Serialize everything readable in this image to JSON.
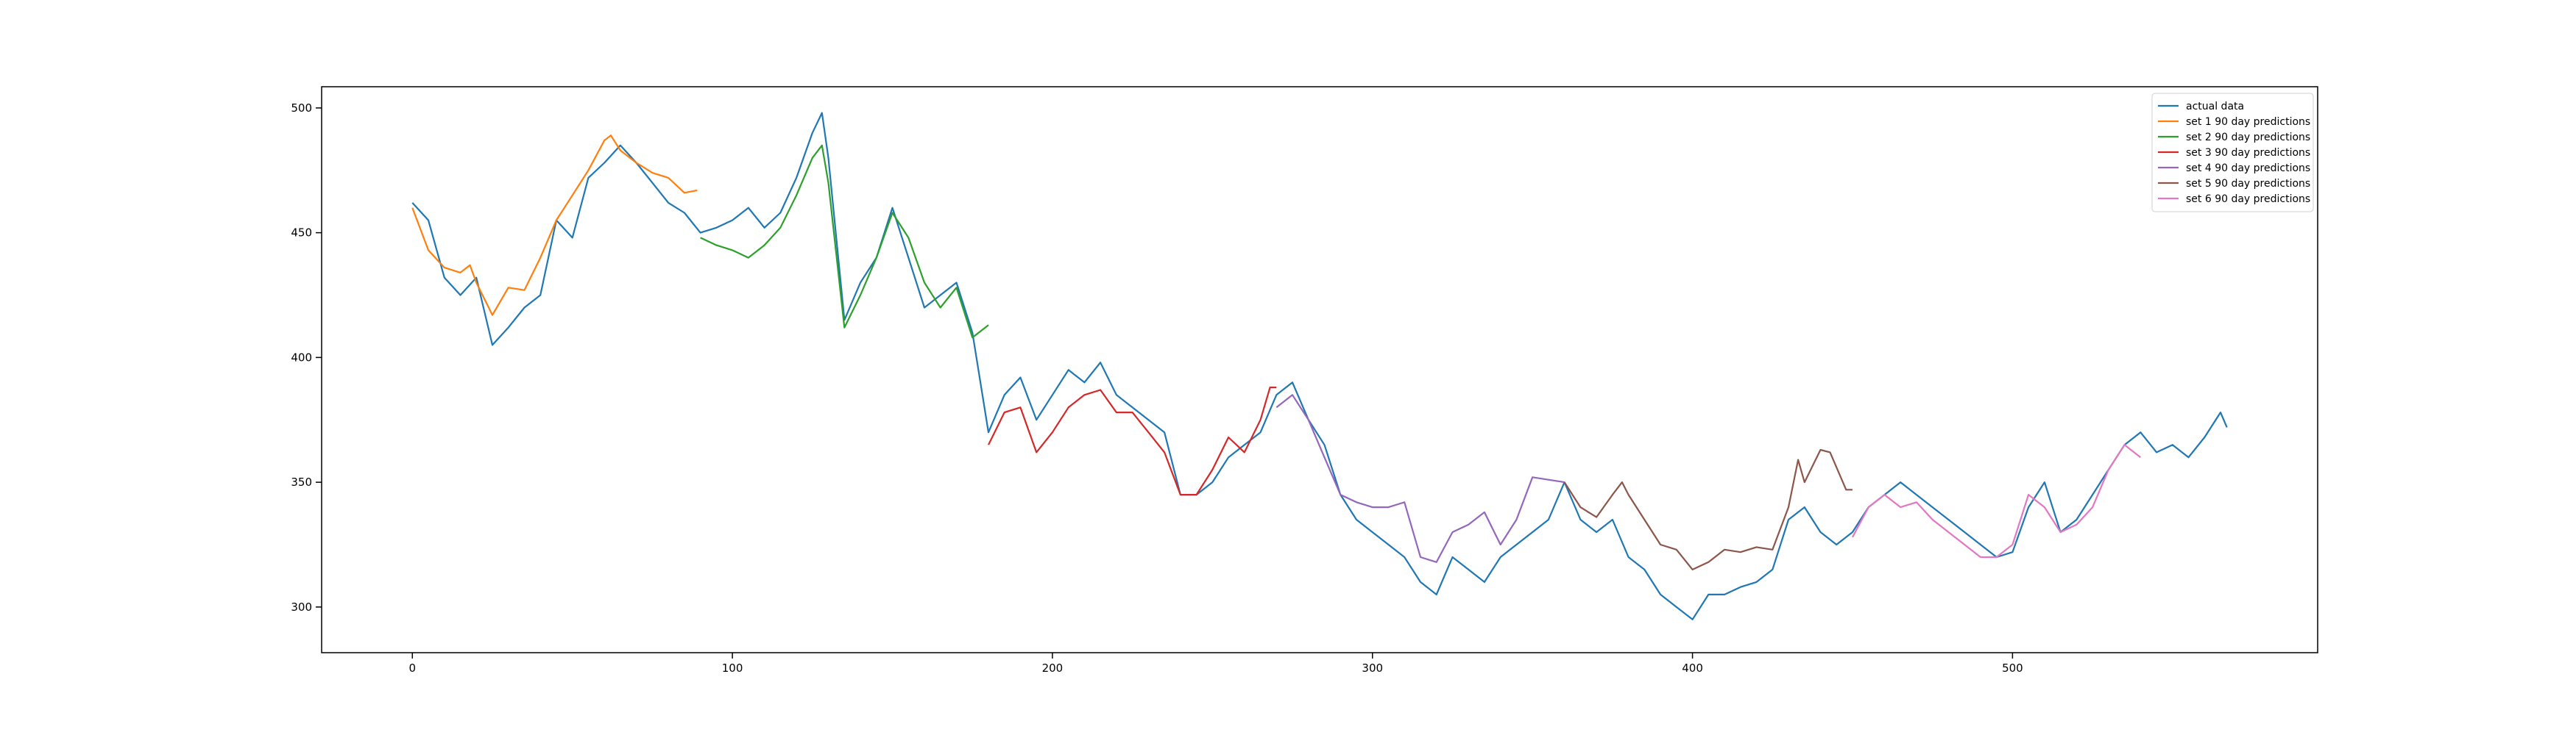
{
  "chart_data": {
    "type": "line",
    "xlim": [
      -28.35,
      595.35
    ],
    "ylim": [
      281.7,
      508.5
    ],
    "xticks": [
      0,
      100,
      200,
      300,
      400,
      500
    ],
    "yticks": [
      300,
      350,
      400,
      450,
      500
    ],
    "grid": false,
    "legend": "upper right",
    "series": [
      {
        "name": "actual data",
        "color": "#1f77b4",
        "x": [
          0,
          5,
          10,
          15,
          20,
          25,
          30,
          35,
          40,
          45,
          50,
          55,
          60,
          65,
          70,
          75,
          80,
          85,
          90,
          95,
          100,
          105,
          110,
          115,
          120,
          125,
          128,
          130,
          135,
          140,
          145,
          150,
          155,
          160,
          165,
          170,
          175,
          180,
          185,
          190,
          195,
          200,
          205,
          210,
          215,
          220,
          225,
          230,
          235,
          240,
          245,
          250,
          255,
          260,
          265,
          270,
          275,
          280,
          285,
          290,
          295,
          300,
          305,
          310,
          315,
          320,
          325,
          330,
          335,
          340,
          345,
          350,
          355,
          360,
          365,
          370,
          375,
          380,
          385,
          390,
          395,
          400,
          405,
          410,
          415,
          420,
          425,
          430,
          435,
          440,
          445,
          450,
          455,
          460,
          465,
          470,
          475,
          480,
          485,
          490,
          495,
          500,
          505,
          510,
          515,
          520,
          525,
          530,
          535,
          540,
          545,
          550,
          555,
          560,
          565,
          567
        ],
        "values": [
          462,
          455,
          432,
          425,
          432,
          405,
          412,
          420,
          425,
          455,
          448,
          472,
          478,
          485,
          478,
          470,
          462,
          458,
          450,
          452,
          455,
          460,
          452,
          458,
          472,
          490,
          498,
          480,
          415,
          430,
          440,
          460,
          440,
          420,
          425,
          430,
          410,
          370,
          385,
          392,
          375,
          385,
          395,
          390,
          398,
          385,
          380,
          375,
          370,
          345,
          345,
          350,
          360,
          365,
          370,
          385,
          390,
          375,
          365,
          345,
          335,
          330,
          325,
          320,
          310,
          305,
          320,
          315,
          310,
          320,
          325,
          330,
          335,
          350,
          335,
          330,
          335,
          320,
          315,
          305,
          300,
          295,
          305,
          305,
          308,
          310,
          315,
          335,
          340,
          330,
          325,
          330,
          340,
          345,
          350,
          345,
          340,
          335,
          330,
          325,
          320,
          322,
          340,
          350,
          330,
          335,
          345,
          355,
          365,
          370,
          362,
          365,
          360,
          368,
          378,
          372
        ]
      },
      {
        "name": "set 1 90 day predictions",
        "color": "#ff7f0e",
        "x": [
          0,
          5,
          10,
          15,
          18,
          20,
          25,
          30,
          35,
          40,
          45,
          50,
          55,
          60,
          62,
          65,
          70,
          75,
          80,
          85,
          89
        ],
        "values": [
          460,
          443,
          436,
          434,
          437,
          430,
          417,
          428,
          427,
          440,
          455,
          465,
          475,
          487,
          489,
          483,
          478,
          474,
          472,
          466,
          467
        ]
      },
      {
        "name": "set 2 90 day predictions",
        "color": "#2ca02c",
        "x": [
          90,
          95,
          100,
          105,
          110,
          115,
          120,
          125,
          128,
          130,
          135,
          140,
          145,
          150,
          155,
          160,
          165,
          170,
          175,
          180
        ],
        "values": [
          448,
          445,
          443,
          440,
          445,
          452,
          465,
          480,
          485,
          470,
          412,
          425,
          440,
          458,
          448,
          430,
          420,
          428,
          408,
          413
        ]
      },
      {
        "name": "set 3 90 day predictions",
        "color": "#d62728",
        "x": [
          180,
          185,
          190,
          195,
          200,
          205,
          210,
          215,
          220,
          225,
          230,
          235,
          240,
          245,
          250,
          255,
          260,
          265,
          268,
          270
        ],
        "values": [
          365,
          378,
          380,
          362,
          370,
          380,
          385,
          387,
          378,
          378,
          370,
          362,
          345,
          345,
          355,
          368,
          362,
          375,
          388,
          388
        ]
      },
      {
        "name": "set 4 90 day predictions",
        "color": "#9467bd",
        "x": [
          270,
          275,
          280,
          285,
          290,
          295,
          300,
          305,
          310,
          315,
          320,
          325,
          330,
          335,
          340,
          345,
          350,
          355,
          360
        ],
        "values": [
          380,
          385,
          375,
          360,
          345,
          342,
          340,
          340,
          342,
          320,
          318,
          330,
          333,
          338,
          325,
          335,
          352,
          351,
          350
        ]
      },
      {
        "name": "set 5 90 day predictions",
        "color": "#8c564b",
        "x": [
          360,
          365,
          370,
          375,
          378,
          380,
          385,
          390,
          395,
          400,
          405,
          410,
          415,
          420,
          425,
          430,
          433,
          435,
          440,
          443,
          448,
          450
        ],
        "values": [
          350,
          340,
          336,
          345,
          350,
          345,
          335,
          325,
          323,
          315,
          318,
          323,
          322,
          324,
          323,
          340,
          359,
          350,
          363,
          362,
          347,
          347
        ]
      },
      {
        "name": "set 6 90 day predictions",
        "color": "#e377c2",
        "x": [
          450,
          455,
          460,
          465,
          470,
          475,
          480,
          485,
          490,
          495,
          500,
          505,
          510,
          515,
          520,
          525,
          530,
          535,
          540
        ],
        "values": [
          328,
          340,
          345,
          340,
          342,
          335,
          330,
          325,
          320,
          320,
          325,
          345,
          340,
          330,
          333,
          340,
          355,
          365,
          360
        ]
      }
    ]
  }
}
